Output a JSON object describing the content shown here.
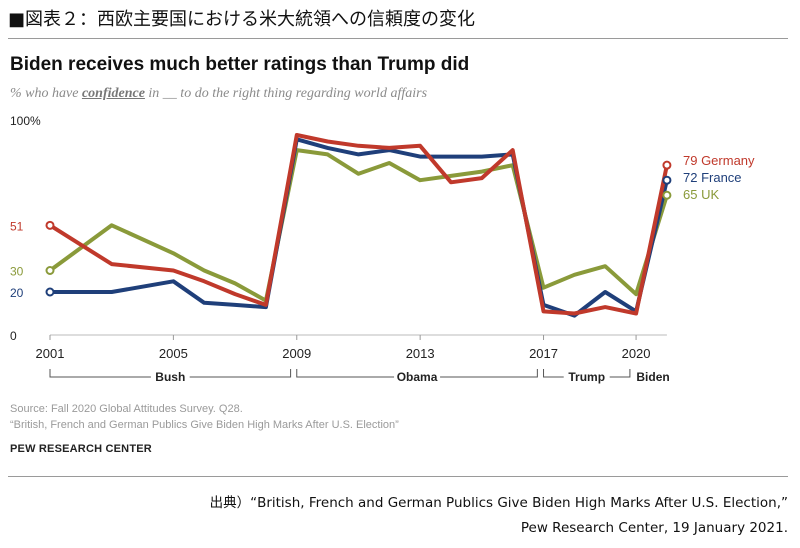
{
  "figure_title": "■図表２：西欧主要国における米大統領への信頼度の変化",
  "chart_data": {
    "type": "line",
    "title": "Biden receives much better ratings than Trump did",
    "subtitle_before": "% who have ",
    "subtitle_keyword": "confidence",
    "subtitle_after": " in __ to do the right thing regarding world affairs",
    "ylim": [
      0,
      100
    ],
    "y_ticks": [
      {
        "value": 100,
        "label": "100%",
        "color": "#222222"
      },
      {
        "value": 51,
        "label": "51",
        "color": "#c0392b"
      },
      {
        "value": 30,
        "label": "30",
        "color": "#8a9a3a"
      },
      {
        "value": 20,
        "label": "20",
        "color": "#1f3f7a"
      },
      {
        "value": 0,
        "label": "0",
        "color": "#222222"
      }
    ],
    "xlim": [
      2001,
      2021.1
    ],
    "x_ticks": [
      {
        "value": 2001,
        "label": "2001"
      },
      {
        "value": 2005,
        "label": "2005"
      },
      {
        "value": 2009,
        "label": "2009"
      },
      {
        "value": 2013,
        "label": "2013"
      },
      {
        "value": 2017,
        "label": "2017"
      },
      {
        "value": 2020,
        "label": "2020"
      }
    ],
    "eras": [
      {
        "label": "Bush",
        "start": 2001,
        "end": 2008.8
      },
      {
        "label": "Obama",
        "start": 2009,
        "end": 2016.8
      },
      {
        "label": "Trump",
        "start": 2017,
        "end": 2019.8
      },
      {
        "label": "Biden",
        "start": 2020,
        "end": 2021.1
      }
    ],
    "series": [
      {
        "name": "UK",
        "color": "#8a9a3a",
        "end_label": "65 UK",
        "x": [
          2001,
          2003,
          2005,
          2006,
          2007,
          2008,
          2009,
          2010,
          2011,
          2012,
          2013,
          2014,
          2015,
          2016,
          2017,
          2018,
          2019,
          2020,
          2021
        ],
        "y": [
          30,
          51,
          38,
          30,
          24,
          16,
          86,
          84,
          75,
          80,
          72,
          74,
          76,
          79,
          22,
          28,
          32,
          19,
          65
        ]
      },
      {
        "name": "France",
        "color": "#1f3f7a",
        "end_label": "72 France",
        "x": [
          2001,
          2003,
          2005,
          2006,
          2007,
          2008,
          2009,
          2010,
          2011,
          2012,
          2013,
          2014,
          2015,
          2016,
          2017,
          2018,
          2019,
          2020,
          2021
        ],
        "y": [
          20,
          20,
          25,
          15,
          14,
          13,
          91,
          87,
          84,
          86,
          83,
          83,
          83,
          84,
          14,
          9,
          20,
          11,
          72
        ]
      },
      {
        "name": "Germany",
        "color": "#c0392b",
        "end_label": "79 Germany",
        "x": [
          2001,
          2003,
          2005,
          2006,
          2007,
          2008,
          2009,
          2010,
          2011,
          2012,
          2013,
          2014,
          2015,
          2016,
          2017,
          2018,
          2019,
          2020,
          2021
        ],
        "y": [
          51,
          33,
          30,
          25,
          19,
          14,
          93,
          90,
          88,
          87,
          88,
          71,
          73,
          86,
          11,
          10,
          13,
          10,
          79
        ]
      }
    ]
  },
  "source_line1": "Source: Fall 2020 Global Attitudes Survey. Q28.",
  "source_line2": "“British, French and German Publics Give Biden High Marks After U.S. Election”",
  "org": "PEW RESEARCH CENTER",
  "citation_line1": "出典）“British, French and German Publics Give Biden High Marks After U.S. Election,”",
  "citation_line2": "Pew Research Center, 19 January 2021."
}
